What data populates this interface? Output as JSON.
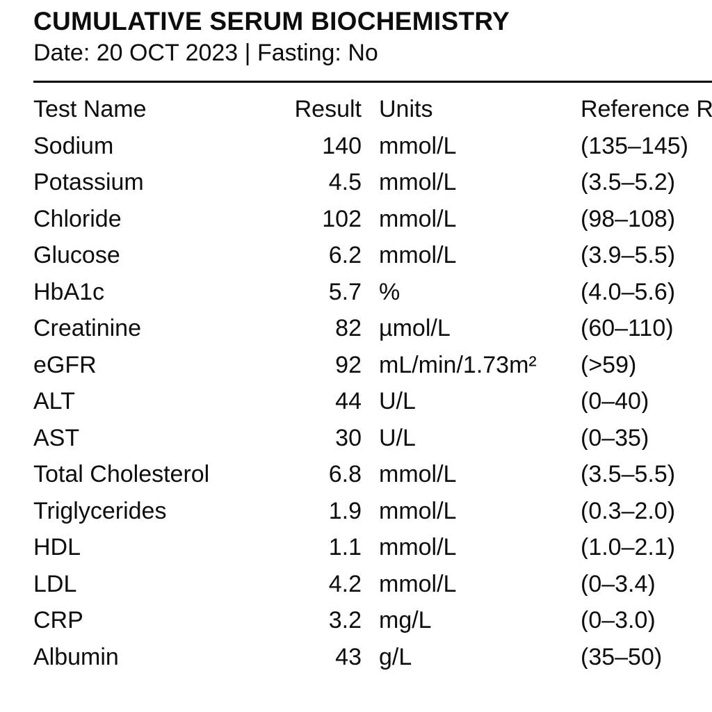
{
  "report": {
    "title": "CUMULATIVE SERUM BIOCHEMISTRY",
    "date_line": "Date: 20 OCT 2023 | Fasting: No"
  },
  "table": {
    "headers": [
      "Test Name",
      "Result",
      "Units",
      "Reference Range"
    ],
    "rows": [
      {
        "name": "Sodium",
        "result": "140",
        "units": "mmol/L",
        "reference": "(135–145)"
      },
      {
        "name": "Potassium",
        "result": "4.5",
        "units": "mmol/L",
        "reference": "(3.5–5.2)"
      },
      {
        "name": "Chloride",
        "result": "102",
        "units": "mmol/L",
        "reference": "(98–108)"
      },
      {
        "name": "Glucose",
        "result": "6.2",
        "units": "mmol/L",
        "reference": "(3.9–5.5)"
      },
      {
        "name": "HbA1c",
        "result": "5.7",
        "units": "%",
        "reference": "(4.0–5.6)"
      },
      {
        "name": "Creatinine",
        "result": "82",
        "units": "µmol/L",
        "reference": "(60–110)"
      },
      {
        "name": "eGFR",
        "result": "92",
        "units": "mL/min/1.73m²",
        "reference": "(>59)"
      },
      {
        "name": "ALT",
        "result": "44",
        "units": "U/L",
        "reference": "(0–40)"
      },
      {
        "name": "AST",
        "result": "30",
        "units": "U/L",
        "reference": "(0–35)"
      },
      {
        "name": "Total Cholesterol",
        "result": "6.8",
        "units": "mmol/L",
        "reference": "(3.5–5.5)"
      },
      {
        "name": "Triglycerides",
        "result": "1.9",
        "units": "mmol/L",
        "reference": "(0.3–2.0)"
      },
      {
        "name": "HDL",
        "result": "1.1",
        "units": "mmol/L",
        "reference": "(1.0–2.1)"
      },
      {
        "name": "LDL",
        "result": "4.2",
        "units": "mmol/L",
        "reference": "(0–3.4)"
      },
      {
        "name": "CRP",
        "result": "3.2",
        "units": "mg/L",
        "reference": "(0–3.0)"
      },
      {
        "name": "Albumin",
        "result": "43",
        "units": "g/L",
        "reference": "(35–50)"
      }
    ]
  }
}
